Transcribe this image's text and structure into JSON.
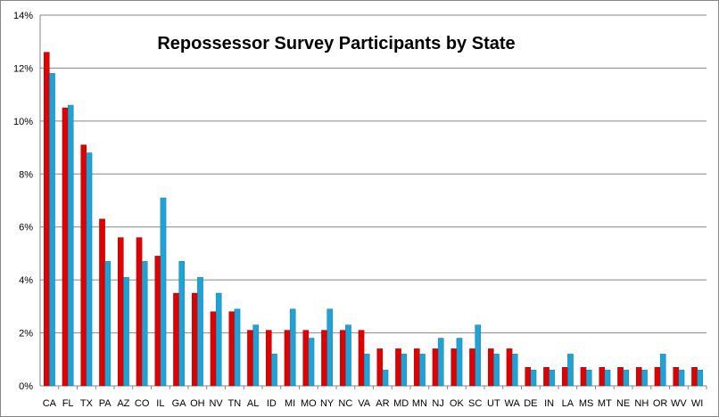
{
  "chart_data": {
    "type": "bar",
    "title": "Repossessor Survey Participants by State",
    "xlabel": "",
    "ylabel": "",
    "ylim": [
      0,
      14
    ],
    "y_ticks": [
      "0%",
      "2%",
      "4%",
      "6%",
      "8%",
      "10%",
      "12%",
      "14%"
    ],
    "y_tick_values": [
      0,
      2,
      4,
      6,
      8,
      10,
      12,
      14
    ],
    "y_unit": "%",
    "grid": true,
    "legend": "none",
    "categories": [
      "CA",
      "FL",
      "TX",
      "PA",
      "AZ",
      "CO",
      "IL",
      "GA",
      "OH",
      "NV",
      "TN",
      "AL",
      "ID",
      "MI",
      "MO",
      "NY",
      "NC",
      "VA",
      "AR",
      "MD",
      "MN",
      "NJ",
      "OK",
      "SC",
      "UT",
      "WA",
      "DE",
      "IN",
      "LA",
      "MS",
      "MT",
      "NE",
      "NH",
      "OR",
      "WV",
      "WI"
    ],
    "series": [
      {
        "color": "#e00000",
        "values": [
          12.6,
          10.5,
          9.1,
          6.3,
          5.6,
          5.6,
          4.9,
          3.5,
          3.5,
          2.8,
          2.8,
          2.1,
          2.1,
          2.1,
          2.1,
          2.1,
          2.1,
          2.1,
          1.4,
          1.4,
          1.4,
          1.4,
          1.4,
          1.4,
          1.4,
          1.4,
          0.7,
          0.7,
          0.7,
          0.7,
          0.7,
          0.7,
          0.7,
          0.7,
          0.7,
          0.7
        ]
      },
      {
        "color": "#1fa3d6",
        "values": [
          11.8,
          10.6,
          8.8,
          4.7,
          4.1,
          4.7,
          7.1,
          4.7,
          4.1,
          3.5,
          2.9,
          2.3,
          1.2,
          2.9,
          1.8,
          2.9,
          2.3,
          1.2,
          0.6,
          1.2,
          1.2,
          1.8,
          1.8,
          2.3,
          1.2,
          1.2,
          0.6,
          0.6,
          1.2,
          0.6,
          0.6,
          0.6,
          0.6,
          1.2,
          0.6,
          0.6
        ]
      }
    ]
  }
}
